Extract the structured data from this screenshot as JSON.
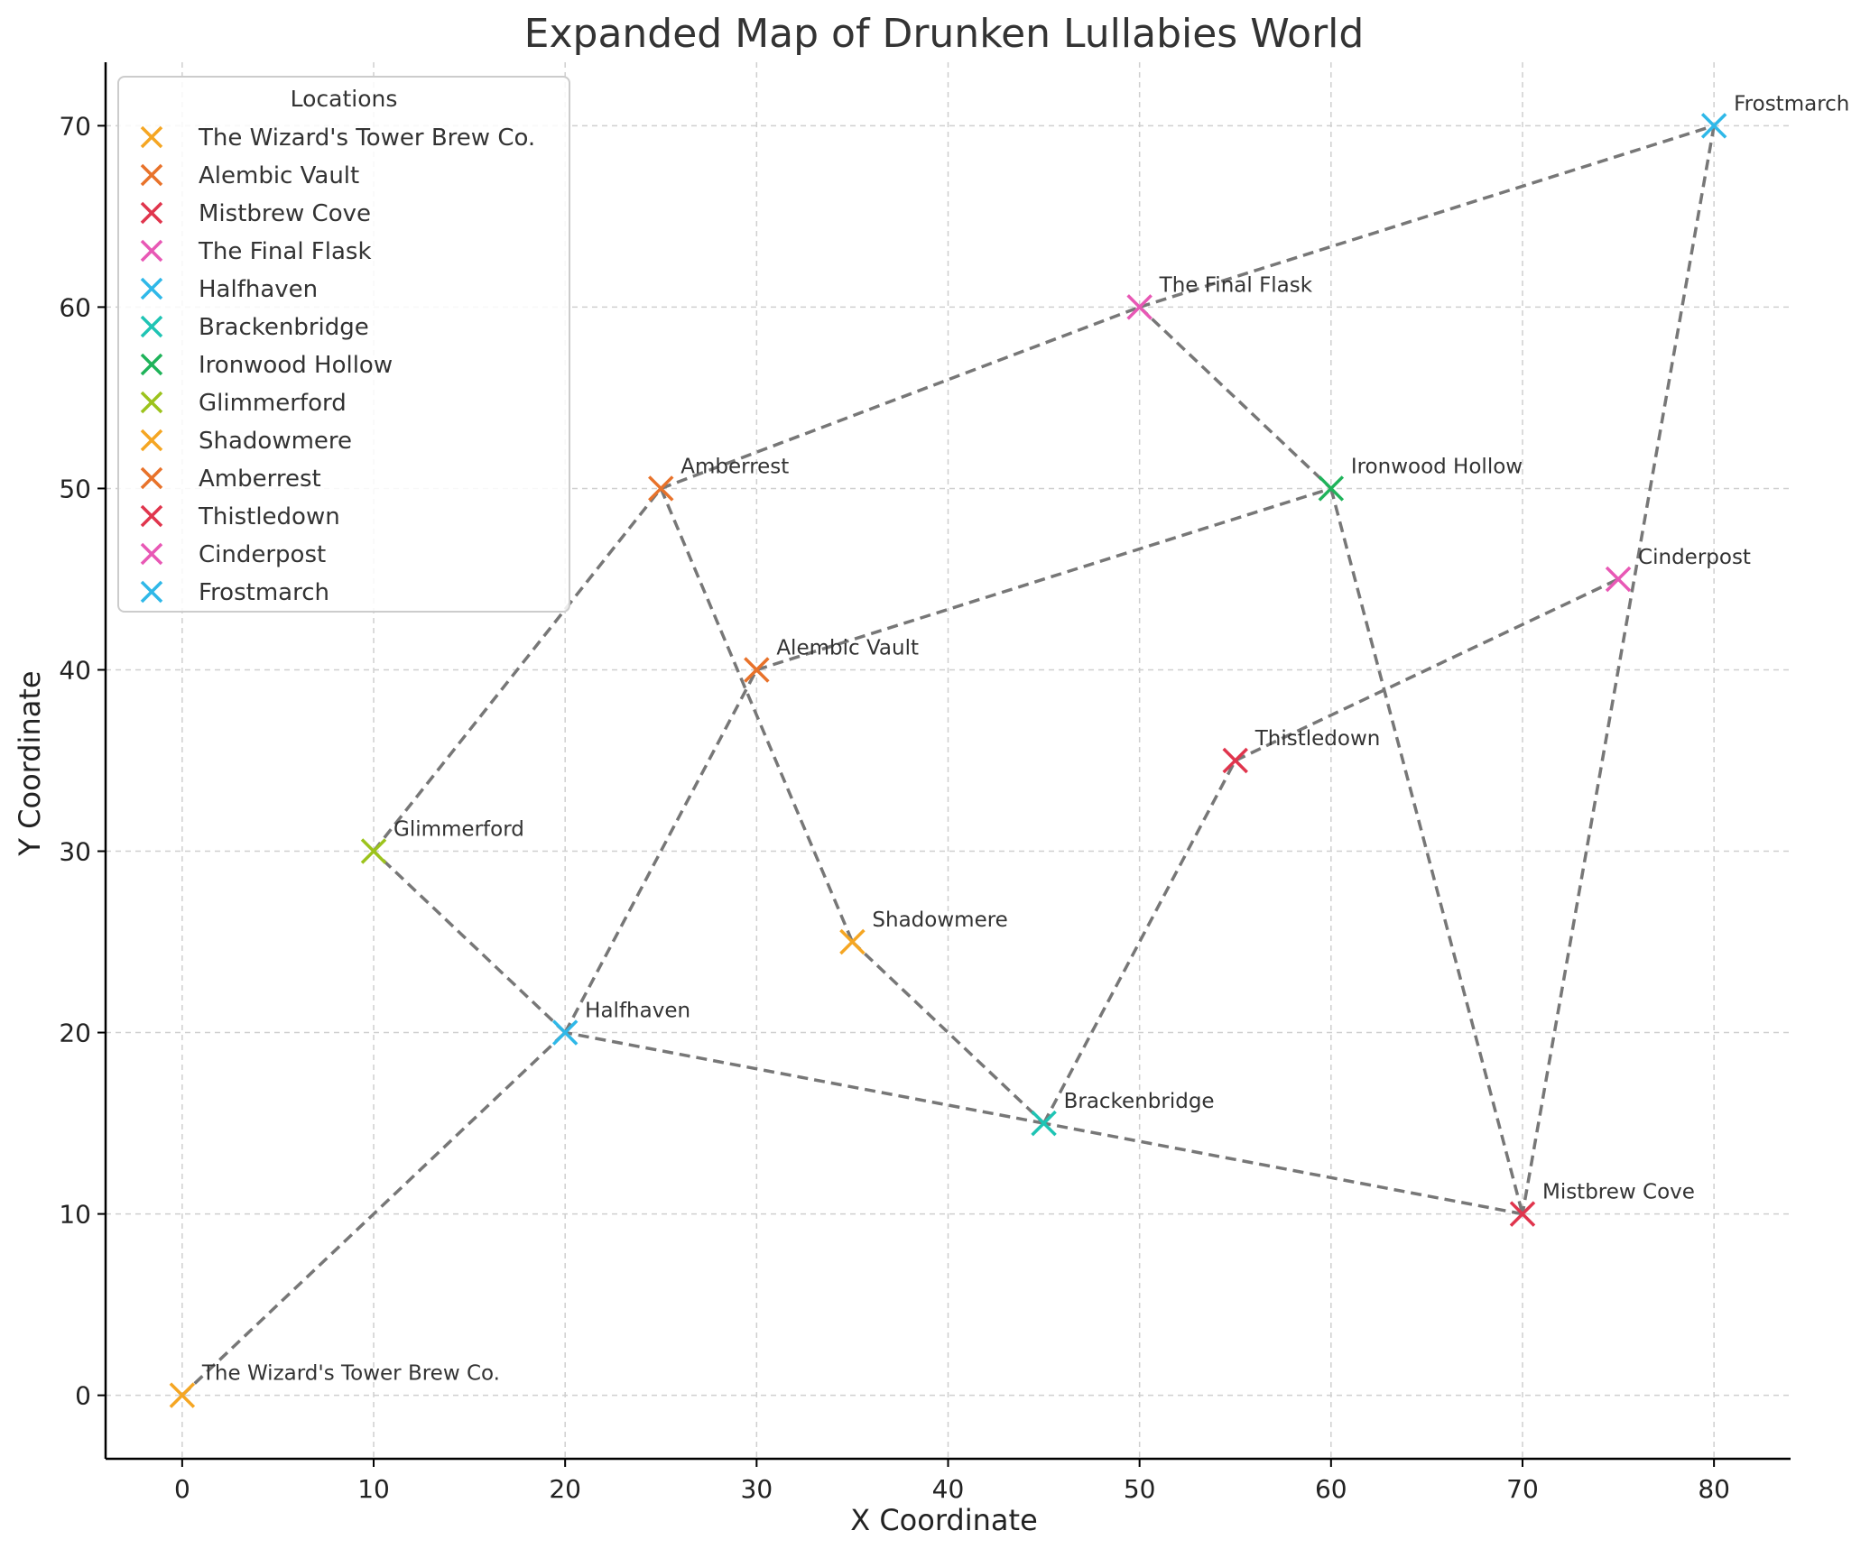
{
  "chart_data": {
    "type": "scatter",
    "title": "Expanded Map of Drunken Lullabies World",
    "xlabel": "X Coordinate",
    "ylabel": "Y Coordinate",
    "xlim": [
      -4,
      84
    ],
    "ylim": [
      -3.5,
      73.5
    ],
    "xticks": [
      0,
      10,
      20,
      30,
      40,
      50,
      60,
      70,
      80
    ],
    "yticks": [
      0,
      10,
      20,
      30,
      40,
      50,
      60,
      70
    ],
    "grid": true,
    "legend": {
      "title": "Locations",
      "placement": "top-left"
    },
    "marker": "x",
    "route_color": "#777777",
    "series": [
      {
        "name": "The Wizard's Tower Brew Co.",
        "x": 0,
        "y": 0,
        "color": "#f5a623"
      },
      {
        "name": "Alembic Vault",
        "x": 30,
        "y": 40,
        "color": "#e8722a"
      },
      {
        "name": "Mistbrew Cove",
        "x": 70,
        "y": 10,
        "color": "#e0354d"
      },
      {
        "name": "The Final Flask",
        "x": 50,
        "y": 60,
        "color": "#e858b5"
      },
      {
        "name": "Halfhaven",
        "x": 20,
        "y": 20,
        "color": "#2fb8e8"
      },
      {
        "name": "Brackenbridge",
        "x": 45,
        "y": 15,
        "color": "#1fc4b4"
      },
      {
        "name": "Ironwood Hollow",
        "x": 60,
        "y": 50,
        "color": "#1fb35a"
      },
      {
        "name": "Glimmerford",
        "x": 10,
        "y": 30,
        "color": "#9cc31c"
      },
      {
        "name": "Shadowmere",
        "x": 35,
        "y": 25,
        "color": "#f5a623"
      },
      {
        "name": "Amberrest",
        "x": 25,
        "y": 50,
        "color": "#e8722a"
      },
      {
        "name": "Thistledown",
        "x": 55,
        "y": 35,
        "color": "#e0354d"
      },
      {
        "name": "Cinderpost",
        "x": 75,
        "y": 45,
        "color": "#e858b5"
      },
      {
        "name": "Frostmarch",
        "x": 80,
        "y": 70,
        "color": "#2fb8e8"
      }
    ],
    "routes": [
      [
        0,
        4
      ],
      [
        4,
        1
      ],
      [
        1,
        6
      ],
      [
        6,
        2
      ],
      [
        2,
        5
      ],
      [
        5,
        4
      ],
      [
        4,
        7
      ],
      [
        7,
        9
      ],
      [
        9,
        3
      ],
      [
        3,
        12
      ],
      [
        12,
        2
      ],
      [
        9,
        8
      ],
      [
        8,
        5
      ],
      [
        5,
        10
      ],
      [
        10,
        11
      ],
      [
        3,
        6
      ]
    ]
  }
}
